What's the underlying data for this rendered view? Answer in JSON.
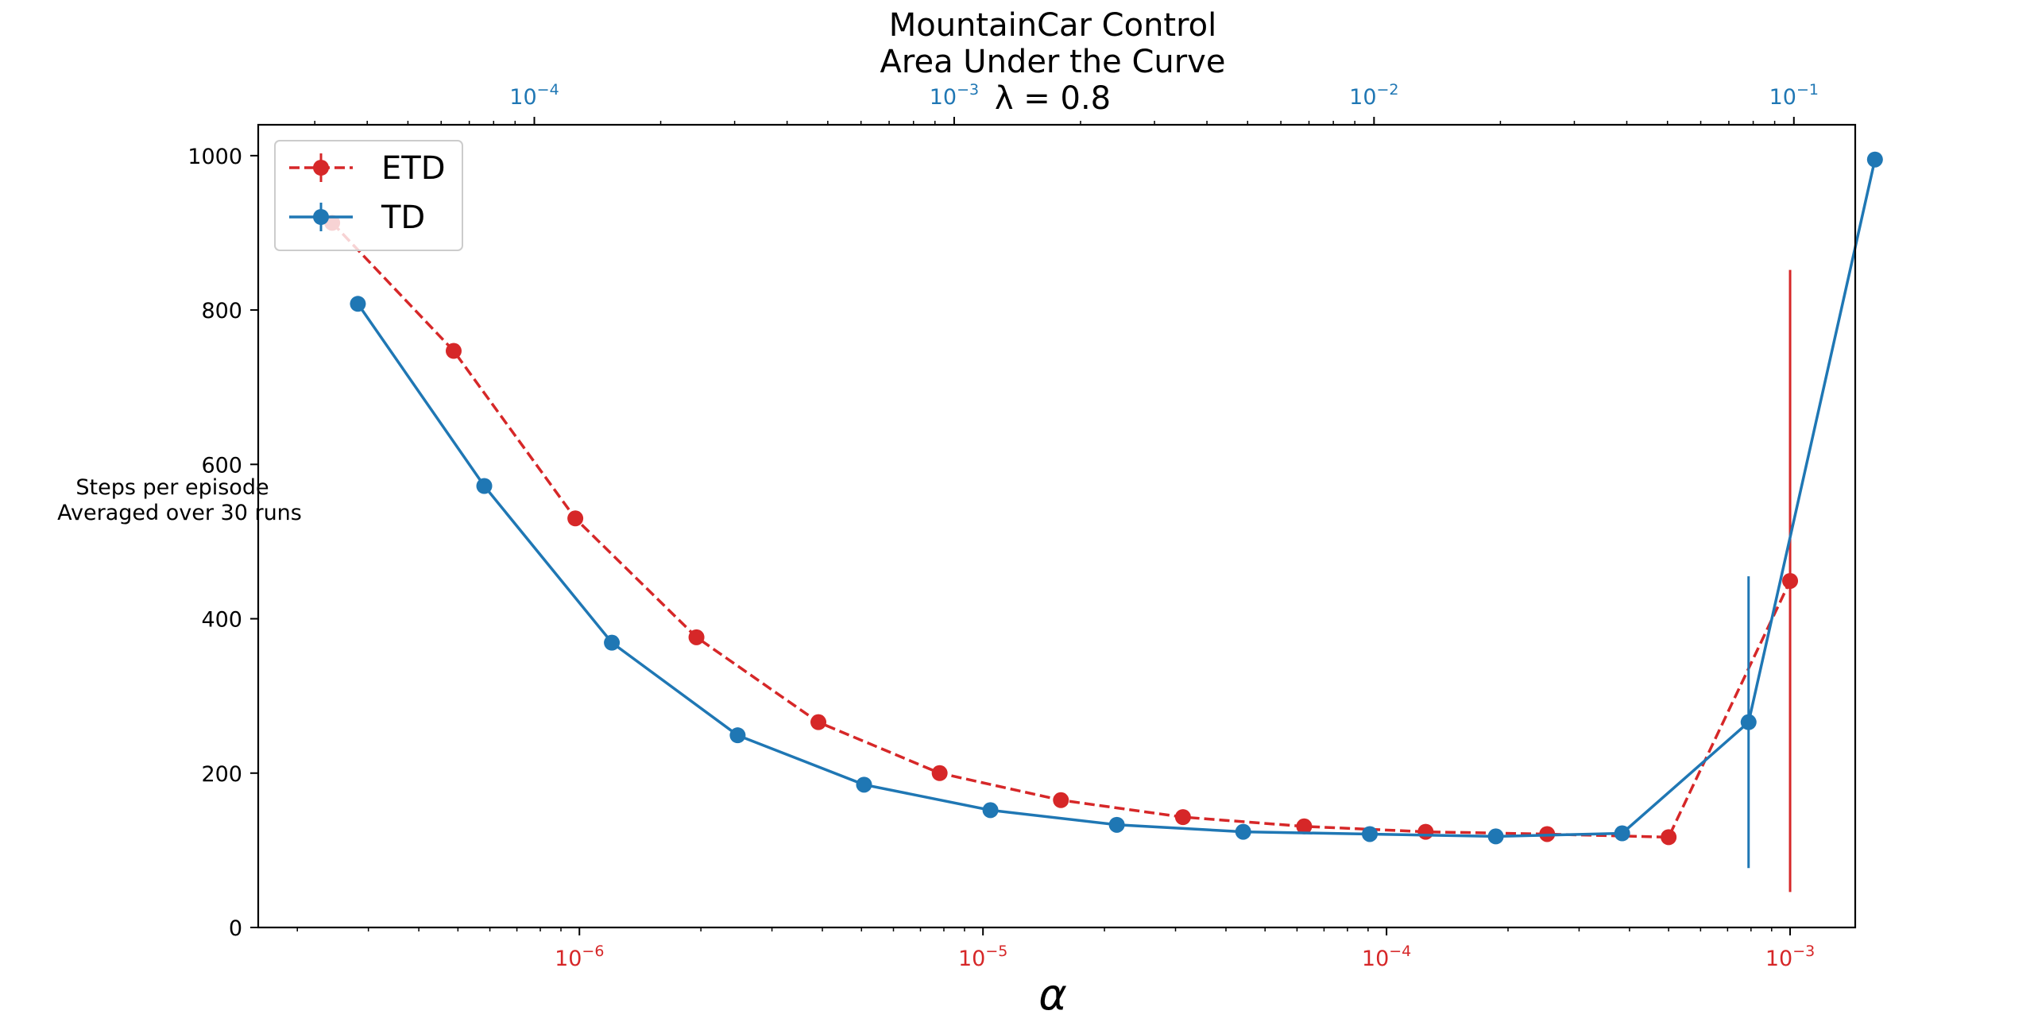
{
  "chart_data": {
    "type": "line",
    "title_lines": [
      "MountainCar Control",
      "Area Under the Curve",
      "λ = 0.8"
    ],
    "xlabel": "α",
    "ylabel_lines": [
      "Steps per episode",
      "Averaged over 30 runs"
    ],
    "ylim": [
      0,
      1040
    ],
    "yticks": [
      0,
      200,
      400,
      600,
      800,
      1000
    ],
    "grid": false,
    "legend_position": "upper-left",
    "colors": {
      "etd": "#d62728",
      "td": "#1f77b4"
    },
    "x_bottom": {
      "scale": "log",
      "lim": [
        1.6e-07,
        0.00145
      ],
      "major_ticks": [
        1e-06,
        1e-05,
        0.0001,
        0.001
      ],
      "tick_labels": [
        "10^-6",
        "10^-5",
        "10^-4",
        "10^-3"
      ],
      "color": "#d62728"
    },
    "x_top": {
      "scale": "log",
      "lim": [
        2.2e-05,
        0.14
      ],
      "major_ticks": [
        0.0001,
        0.001,
        0.01,
        0.1
      ],
      "tick_labels": [
        "10^-4",
        "10^-3",
        "10^-2",
        "10^-1"
      ],
      "color": "#1f77b4"
    },
    "series": [
      {
        "name": "ETD",
        "axis": "bottom",
        "style": "dashed",
        "x": [
          2.44e-07,
          4.88e-07,
          9.77e-07,
          1.95e-06,
          3.91e-06,
          7.81e-06,
          1.56e-05,
          3.13e-05,
          6.25e-05,
          0.000125,
          0.00025,
          0.0005,
          0.001
        ],
        "y": [
          913,
          747,
          530,
          376,
          266,
          200,
          165,
          143,
          131,
          124,
          121,
          117,
          449
        ],
        "err_low": [
          0,
          0,
          0,
          0,
          0,
          0,
          0,
          0,
          0,
          0,
          0,
          0,
          403
        ],
        "err_high": [
          0,
          0,
          0,
          0,
          0,
          0,
          0,
          0,
          0,
          0,
          0,
          0,
          403
        ]
      },
      {
        "name": "TD",
        "axis": "top",
        "style": "solid",
        "x": [
          3.8e-05,
          7.6e-05,
          0.000153,
          0.000305,
          0.00061,
          0.00122,
          0.00244,
          0.00488,
          0.00977,
          0.0195,
          0.039,
          0.078,
          0.156
        ],
        "y": [
          808,
          572,
          369,
          249,
          185,
          152,
          133,
          124,
          121,
          118,
          122,
          266,
          995
        ],
        "err_low": [
          0,
          0,
          0,
          0,
          0,
          0,
          0,
          0,
          0,
          0,
          0,
          189,
          0
        ],
        "err_high": [
          0,
          0,
          0,
          0,
          0,
          0,
          0,
          0,
          0,
          0,
          0,
          189,
          0
        ]
      }
    ]
  }
}
